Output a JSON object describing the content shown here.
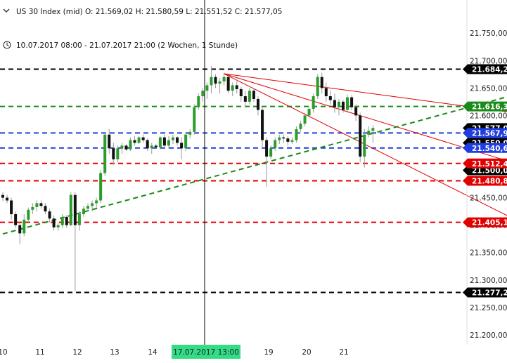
{
  "header": {
    "instrument_line": "US 30 Index (mid)  O: 21.569,02  H: 21.580,59  L: 21.551,52  C: 21.577,05",
    "range_line": "10.07.2017 08:00 - 21.07.2017 21:00   (2 Wochen, 1 Stunde)"
  },
  "colors": {
    "bull": "#2a9d2a",
    "bear": "#111111",
    "black_level": "#000000",
    "green_level": "#1a8a1a",
    "blue_level": "#1f3de0",
    "red_level": "#e00000",
    "trend_red": "#e00000",
    "trend_green": "#1a8a1a",
    "crosshair_badge": "#33dd88"
  },
  "chart_data": {
    "type": "candlestick",
    "title": "US 30 Index (mid)",
    "timeframe": "1 Stunde",
    "x_tick_labels": [
      "10",
      "11",
      "12",
      "13",
      "14",
      "17.07.2017 13:00",
      "19",
      "20",
      "21"
    ],
    "crosshair_label": "17.07.2017 13:00",
    "ylim": [
      21182,
      21772
    ],
    "y_ticks": [
      {
        "value": 21200,
        "label": "21.200,00-"
      },
      {
        "value": 21250,
        "label": "21.250,00-"
      },
      {
        "value": 21300,
        "label": "21.300,00-"
      },
      {
        "value": 21350,
        "label": "21.350,00-"
      },
      {
        "value": 21400,
        "label": "21.400,00-"
      },
      {
        "value": 21450,
        "label": "21.450,00-"
      },
      {
        "value": 21500,
        "label": "21.500,00-"
      },
      {
        "value": 21550,
        "label": "21.550,00-"
      },
      {
        "value": 21600,
        "label": "21.600,00-"
      },
      {
        "value": 21650,
        "label": "21.650,00-"
      },
      {
        "value": 21700,
        "label": "21.700,00-"
      },
      {
        "value": 21750,
        "label": "21.750,00-"
      }
    ],
    "levels": [
      {
        "value": 21684.29,
        "label": "21.684,29",
        "color": "black"
      },
      {
        "value": 21616.37,
        "label": "21.616,37",
        "color": "green"
      },
      {
        "value": 21567.98,
        "label": "21.567,98",
        "color": "blue"
      },
      {
        "value": 21540.61,
        "label": "21.540,61",
        "color": "blue"
      },
      {
        "value": 21512.46,
        "label": "21.512,46",
        "color": "red"
      },
      {
        "value": 21480.84,
        "label": "21.480,84",
        "color": "red"
      },
      {
        "value": 21405.1,
        "label": "21.405,10",
        "color": "red"
      },
      {
        "value": 21277.27,
        "label": "21.277,27",
        "color": "black"
      }
    ],
    "current_price": {
      "value": 21577.05,
      "label": "21.577,05"
    },
    "occluded_labels": [
      {
        "value": 21550.0,
        "label": "21.550,00"
      },
      {
        "value": 21500.0,
        "label": "21.500,00"
      }
    ],
    "trendlines": [
      {
        "color": "red",
        "from": {
          "bar": 52,
          "value": 21676
        },
        "to": {
          "bar": 122,
          "value": 21603
        }
      },
      {
        "color": "red",
        "from": {
          "bar": 52,
          "value": 21676
        },
        "to": {
          "bar": 122,
          "value": 21509
        }
      },
      {
        "color": "red",
        "from": {
          "bar": 52,
          "value": 21676
        },
        "to": {
          "bar": 122,
          "value": 21404
        }
      },
      {
        "color": "green",
        "dashed": true,
        "from": {
          "bar": 0,
          "value": 21384
        },
        "to": {
          "bar": 120,
          "value": 21637
        }
      }
    ],
    "candles": [
      [
        21455,
        21460,
        21444,
        21450
      ],
      [
        21450,
        21455,
        21440,
        21445
      ],
      [
        21445,
        21450,
        21410,
        21420
      ],
      [
        21420,
        21425,
        21395,
        21400
      ],
      [
        21400,
        21405,
        21365,
        21385
      ],
      [
        21385,
        21420,
        21380,
        21410
      ],
      [
        21410,
        21432,
        21405,
        21428
      ],
      [
        21428,
        21440,
        21420,
        21433
      ],
      [
        21433,
        21445,
        21425,
        21440
      ],
      [
        21440,
        21445,
        21430,
        21435
      ],
      [
        21435,
        21440,
        21420,
        21425
      ],
      [
        21425,
        21430,
        21405,
        21412
      ],
      [
        21412,
        21418,
        21390,
        21396
      ],
      [
        21396,
        21405,
        21390,
        21400
      ],
      [
        21400,
        21420,
        21395,
        21415
      ],
      [
        21415,
        21418,
        21395,
        21400
      ],
      [
        21400,
        21460,
        21398,
        21455
      ],
      [
        21455,
        21460,
        21280,
        21400
      ],
      [
        21400,
        21425,
        21390,
        21420
      ],
      [
        21420,
        21435,
        21415,
        21430
      ],
      [
        21430,
        21440,
        21425,
        21435
      ],
      [
        21435,
        21445,
        21425,
        21440
      ],
      [
        21440,
        21450,
        21432,
        21445
      ],
      [
        21445,
        21500,
        21440,
        21495
      ],
      [
        21495,
        21570,
        21490,
        21565
      ],
      [
        21565,
        21575,
        21530,
        21540
      ],
      [
        21540,
        21550,
        21510,
        21520
      ],
      [
        21520,
        21545,
        21515,
        21540
      ],
      [
        21540,
        21550,
        21530,
        21545
      ],
      [
        21545,
        21548,
        21535,
        21538
      ],
      [
        21538,
        21560,
        21535,
        21555
      ],
      [
        21555,
        21562,
        21545,
        21550
      ],
      [
        21550,
        21562,
        21548,
        21560
      ],
      [
        21560,
        21565,
        21550,
        21555
      ],
      [
        21555,
        21558,
        21535,
        21540
      ],
      [
        21540,
        21550,
        21530,
        21545
      ],
      [
        21545,
        21548,
        21540,
        21542
      ],
      [
        21542,
        21562,
        21538,
        21560
      ],
      [
        21560,
        21565,
        21540,
        21545
      ],
      [
        21545,
        21562,
        21540,
        21555
      ],
      [
        21555,
        21565,
        21548,
        21560
      ],
      [
        21560,
        21562,
        21545,
        21550
      ],
      [
        21550,
        21560,
        21520,
        21540
      ],
      [
        21540,
        21570,
        21535,
        21565
      ],
      [
        21565,
        21575,
        21558,
        21570
      ],
      [
        21570,
        21620,
        21565,
        21615
      ],
      [
        21615,
        21640,
        21610,
        21635
      ],
      [
        21635,
        21650,
        21625,
        21645
      ],
      [
        21645,
        21660,
        21630,
        21655
      ],
      [
        21655,
        21690,
        21640,
        21670
      ],
      [
        21670,
        21675,
        21650,
        21658
      ],
      [
        21658,
        21668,
        21640,
        21662
      ],
      [
        21662,
        21678,
        21655,
        21670
      ],
      [
        21670,
        21672,
        21640,
        21645
      ],
      [
        21645,
        21660,
        21635,
        21655
      ],
      [
        21655,
        21665,
        21640,
        21648
      ],
      [
        21648,
        21652,
        21625,
        21635
      ],
      [
        21635,
        21645,
        21615,
        21625
      ],
      [
        21625,
        21650,
        21620,
        21645
      ],
      [
        21645,
        21650,
        21625,
        21630
      ],
      [
        21630,
        21635,
        21600,
        21610
      ],
      [
        21610,
        21615,
        21540,
        21555
      ],
      [
        21555,
        21560,
        21470,
        21525
      ],
      [
        21525,
        21545,
        21520,
        21540
      ],
      [
        21540,
        21560,
        21535,
        21555
      ],
      [
        21555,
        21565,
        21548,
        21560
      ],
      [
        21560,
        21565,
        21550,
        21558
      ],
      [
        21558,
        21562,
        21545,
        21552
      ],
      [
        21552,
        21560,
        21548,
        21555
      ],
      [
        21555,
        21580,
        21550,
        21575
      ],
      [
        21575,
        21590,
        21570,
        21585
      ],
      [
        21585,
        21605,
        21580,
        21600
      ],
      [
        21600,
        21615,
        21595,
        21612
      ],
      [
        21612,
        21640,
        21605,
        21635
      ],
      [
        21635,
        21675,
        21630,
        21670
      ],
      [
        21670,
        21678,
        21640,
        21650
      ],
      [
        21650,
        21660,
        21625,
        21635
      ],
      [
        21635,
        21645,
        21620,
        21628
      ],
      [
        21628,
        21640,
        21605,
        21615
      ],
      [
        21615,
        21630,
        21600,
        21625
      ],
      [
        21625,
        21628,
        21605,
        21610
      ],
      [
        21610,
        21638,
        21605,
        21633
      ],
      [
        21633,
        21637,
        21610,
        21615
      ],
      [
        21615,
        21620,
        21590,
        21600
      ],
      [
        21600,
        21605,
        21515,
        21525
      ],
      [
        21525,
        21575,
        21505,
        21565
      ],
      [
        21565,
        21580,
        21560,
        21572
      ],
      [
        21572,
        21582,
        21550,
        21577
      ]
    ]
  }
}
